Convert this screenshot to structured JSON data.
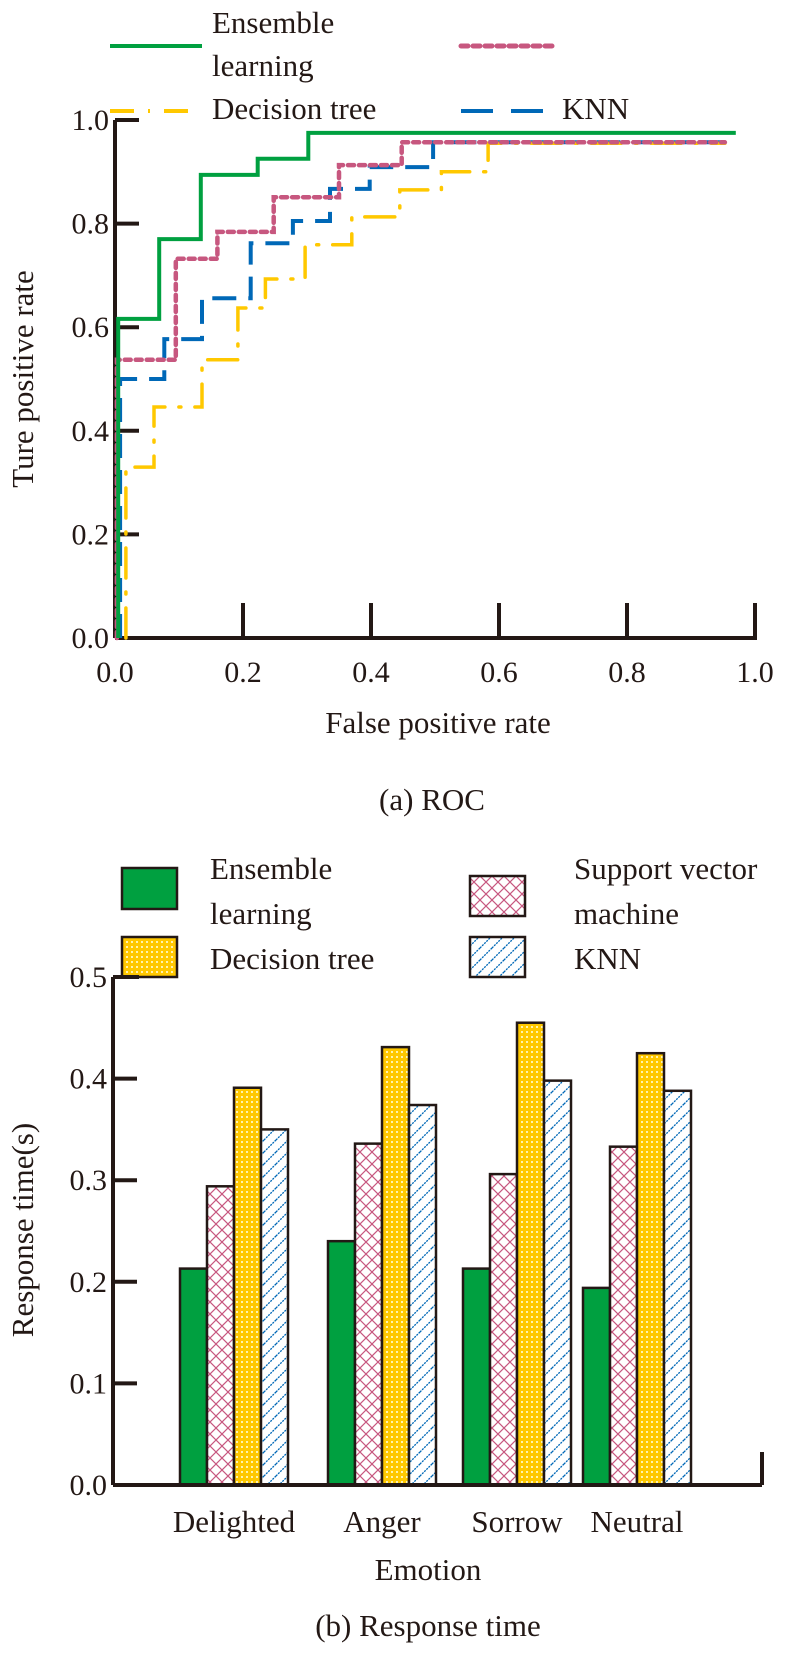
{
  "chart_data": [
    {
      "type": "line",
      "title": "",
      "caption": "(a) ROC",
      "xlabel": "False positive rate",
      "ylabel": "Ture positive rate",
      "xlim": [
        0,
        1
      ],
      "ylim": [
        0,
        1
      ],
      "xticks": [
        "0.0",
        "0.2",
        "0.4",
        "0.6",
        "0.8",
        "1.0"
      ],
      "yticks": [
        "0.0",
        "0.2",
        "0.4",
        "0.6",
        "0.8",
        "1.0"
      ],
      "grid": false,
      "legend_position": "top",
      "series": [
        {
          "name": "Ensemble learning",
          "legend_line1": "Ensemble",
          "legend_line2": "learning",
          "color": "#00a040",
          "style": "solid",
          "points": [
            [
              0.005,
              0
            ],
            [
              0.005,
              0.616
            ],
            [
              0.069,
              0.616
            ],
            [
              0.069,
              0.77
            ],
            [
              0.134,
              0.77
            ],
            [
              0.134,
              0.894
            ],
            [
              0.223,
              0.894
            ],
            [
              0.223,
              0.925
            ],
            [
              0.302,
              0.925
            ],
            [
              0.302,
              0.975
            ],
            [
              0.97,
              0.975
            ]
          ]
        },
        {
          "name": "",
          "color": "#c7577f",
          "style": "dotted",
          "points": [
            [
              0.003,
              0
            ],
            [
              0.003,
              0.537
            ],
            [
              0.095,
              0.537
            ],
            [
              0.095,
              0.732
            ],
            [
              0.16,
              0.732
            ],
            [
              0.16,
              0.784
            ],
            [
              0.248,
              0.784
            ],
            [
              0.248,
              0.851
            ],
            [
              0.35,
              0.851
            ],
            [
              0.35,
              0.913
            ],
            [
              0.448,
              0.913
            ],
            [
              0.448,
              0.957
            ],
            [
              0.953,
              0.957
            ]
          ]
        },
        {
          "name": "Decision tree",
          "color": "#ffc800",
          "style": "dashdot",
          "points": [
            [
              0.017,
              0
            ],
            [
              0.017,
              0.33
            ],
            [
              0.061,
              0.33
            ],
            [
              0.061,
              0.446
            ],
            [
              0.136,
              0.446
            ],
            [
              0.136,
              0.537
            ],
            [
              0.192,
              0.537
            ],
            [
              0.192,
              0.637
            ],
            [
              0.235,
              0.637
            ],
            [
              0.235,
              0.693
            ],
            [
              0.297,
              0.693
            ],
            [
              0.297,
              0.759
            ],
            [
              0.37,
              0.759
            ],
            [
              0.37,
              0.813
            ],
            [
              0.445,
              0.813
            ],
            [
              0.445,
              0.865
            ],
            [
              0.51,
              0.865
            ],
            [
              0.51,
              0.9
            ],
            [
              0.583,
              0.9
            ],
            [
              0.583,
              0.955
            ],
            [
              0.953,
              0.955
            ]
          ]
        },
        {
          "name": "KNN",
          "color": "#0068b7",
          "style": "dashed",
          "points": [
            [
              0.008,
              0
            ],
            [
              0.008,
              0.5
            ],
            [
              0.077,
              0.5
            ],
            [
              0.077,
              0.577
            ],
            [
              0.136,
              0.577
            ],
            [
              0.136,
              0.656
            ],
            [
              0.212,
              0.656
            ],
            [
              0.212,
              0.762
            ],
            [
              0.278,
              0.762
            ],
            [
              0.278,
              0.805
            ],
            [
              0.336,
              0.805
            ],
            [
              0.336,
              0.867
            ],
            [
              0.398,
              0.867
            ],
            [
              0.398,
              0.909
            ],
            [
              0.497,
              0.909
            ],
            [
              0.497,
              0.957
            ],
            [
              0.953,
              0.957
            ]
          ]
        }
      ]
    },
    {
      "type": "bar",
      "title": "",
      "caption": "(b) Response time",
      "xlabel": "Emotion",
      "ylabel": "Response time(s)",
      "ylim": [
        0,
        0.5
      ],
      "yticks": [
        "0.0",
        "0.1",
        "0.2",
        "0.3",
        "0.4",
        "0.5"
      ],
      "grid": false,
      "legend_position": "top",
      "categories": [
        "Delighted",
        "Anger",
        "Sorrow",
        "Neutral"
      ],
      "series": [
        {
          "name": "Ensemble learning",
          "legend_line1": "Ensemble",
          "legend_line2": "learning",
          "color": "#00a040",
          "pattern": "solid",
          "values": [
            0.213,
            0.24,
            0.213,
            0.194
          ]
        },
        {
          "name": "Support vector machine",
          "legend_line1": "Support vector",
          "legend_line2": "machine",
          "color": "#c7577f",
          "pattern": "crosshatch",
          "values": [
            0.294,
            0.336,
            0.306,
            0.333
          ]
        },
        {
          "name": "Decision tree",
          "legend_line1": "Decision tree",
          "legend_line2": "",
          "color": "#ffc800",
          "pattern": "dots",
          "values": [
            0.391,
            0.431,
            0.455,
            0.425
          ]
        },
        {
          "name": "KNN",
          "legend_line1": "KNN",
          "legend_line2": "",
          "color": "#0068b7",
          "pattern": "diagonal",
          "values": [
            0.35,
            0.374,
            0.398,
            0.388
          ]
        }
      ]
    }
  ]
}
